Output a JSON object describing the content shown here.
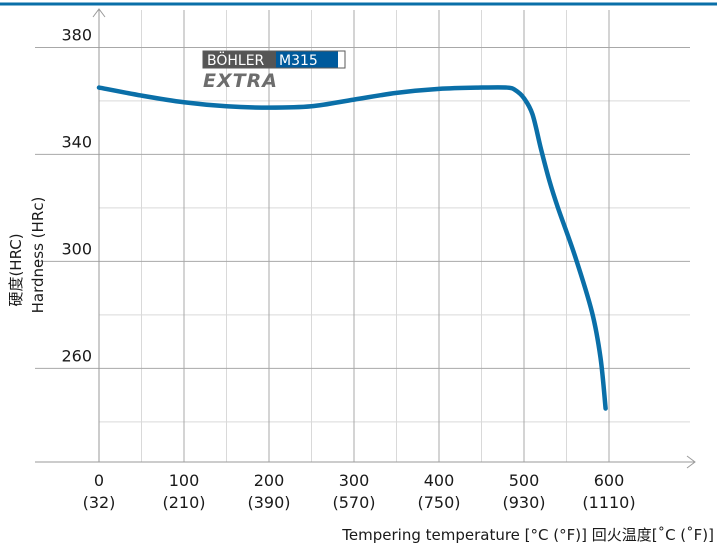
{
  "chart_data": {
    "type": "line",
    "title": "",
    "xlabel": "Tempering temperature [°C (°F)] 回火温度[˚C (˚F)]",
    "ylabel_lines": [
      "硬度(HRC)",
      "Hardness (HRc)"
    ],
    "xlim": [
      0,
      620
    ],
    "ylim": [
      225,
      394
    ],
    "x_ticks": [
      {
        "value": 0,
        "label": "0",
        "sublabel": "(32)"
      },
      {
        "value": 100,
        "label": "100",
        "sublabel": "(210)"
      },
      {
        "value": 200,
        "label": "200",
        "sublabel": "(390)"
      },
      {
        "value": 300,
        "label": "300",
        "sublabel": "(570)"
      },
      {
        "value": 400,
        "label": "400",
        "sublabel": "(750)"
      },
      {
        "value": 500,
        "label": "500",
        "sublabel": "(930)"
      },
      {
        "value": 600,
        "label": "600",
        "sublabel": "(1110)"
      }
    ],
    "x_minor_grid": [
      50,
      150,
      250,
      350,
      450,
      550
    ],
    "y_ticks": [
      380,
      340,
      300,
      260
    ],
    "y_minor_grid": [
      360,
      320,
      280,
      240
    ],
    "grid": true,
    "legend": {
      "brand": "BÖHLER",
      "grade": "M315",
      "subtitle": "EXTRA"
    },
    "series": [
      {
        "color": "#0a6fa8",
        "x": [
          0,
          50,
          100,
          150,
          200,
          250,
          300,
          350,
          400,
          450,
          480,
          490,
          500,
          510,
          520,
          530,
          540,
          560,
          580,
          590,
          596
        ],
        "y": [
          365,
          362,
          359.5,
          358,
          357.5,
          358,
          360.5,
          363,
          364.5,
          365,
          365,
          364,
          361,
          355,
          342,
          330,
          320,
          302,
          281,
          264,
          245
        ]
      }
    ]
  },
  "colors": {
    "top_rule": "#0a6fa8",
    "legend_brand_bg": "#555555",
    "legend_grade_bg": "#005a9c",
    "legend_subtitle": "#6d6d6d"
  }
}
